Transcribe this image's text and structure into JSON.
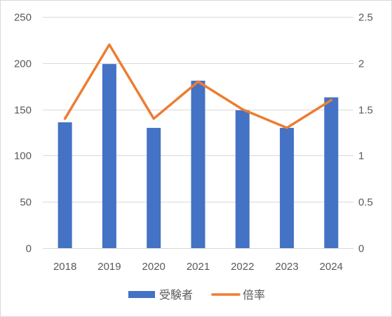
{
  "chart_data": {
    "type": "bar",
    "categories": [
      "2018",
      "2019",
      "2020",
      "2021",
      "2022",
      "2023",
      "2024"
    ],
    "series": [
      {
        "name": "受験者",
        "type": "bar",
        "axis": "left",
        "color": "#4472C4",
        "values": [
          136,
          199,
          130,
          181,
          149,
          130,
          163
        ]
      },
      {
        "name": "倍率",
        "type": "line",
        "axis": "right",
        "color": "#ED7D31",
        "values": [
          1.4,
          2.2,
          1.4,
          1.8,
          1.5,
          1.3,
          1.6
        ]
      }
    ],
    "ylim": [
      0,
      250
    ],
    "y_ticks": [
      "0",
      "50",
      "100",
      "150",
      "200",
      "250"
    ],
    "y2lim": [
      0,
      2.5
    ],
    "y2_ticks": [
      "0",
      "0.5",
      "1",
      "1.5",
      "2",
      "2.5"
    ],
    "grid": true,
    "legend": "bottom"
  },
  "colors": {
    "gridline": "#D9D9D9",
    "tick_text": "#595959",
    "frame": "#D9D9D9",
    "background": "#FFFFFF"
  }
}
